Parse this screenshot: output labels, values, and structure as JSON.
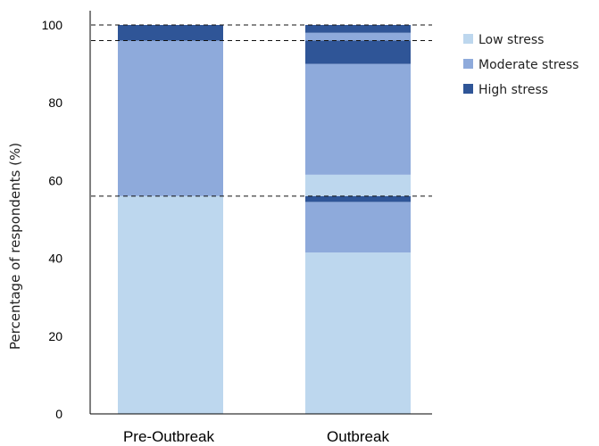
{
  "chart_data": {
    "type": "bar",
    "stacked": true,
    "ylabel": "Percentage of respondents (%)",
    "xlabel": "",
    "ylim": [
      0,
      100
    ],
    "yticks": [
      0,
      20,
      40,
      60,
      80,
      100
    ],
    "categories": [
      "Pre-Outbreak",
      "Outbreak"
    ],
    "colors": {
      "low": "#bdd7ee",
      "moderate": "#8eaadb",
      "high": "#2f5597"
    },
    "legend": {
      "position": "top-right",
      "entries": [
        {
          "key": "low",
          "label": "Low stress"
        },
        {
          "key": "moderate",
          "label": "Moderate stress"
        },
        {
          "key": "high",
          "label": "High stress"
        }
      ]
    },
    "stacks": [
      {
        "category": "Pre-Outbreak",
        "segments": [
          {
            "key": "low",
            "from": 0,
            "to": 56
          },
          {
            "key": "moderate",
            "from": 56,
            "to": 96
          },
          {
            "key": "high",
            "from": 96,
            "to": 100
          }
        ]
      },
      {
        "category": "Outbreak",
        "segments": [
          {
            "key": "low",
            "from": 0,
            "to": 41.5
          },
          {
            "key": "moderate",
            "from": 41.5,
            "to": 54.5
          },
          {
            "key": "high",
            "from": 54.5,
            "to": 56
          },
          {
            "key": "low",
            "from": 56,
            "to": 61.5
          },
          {
            "key": "moderate",
            "from": 61.5,
            "to": 90
          },
          {
            "key": "high",
            "from": 90,
            "to": 96
          },
          {
            "key": "moderate",
            "from": 96,
            "to": 98
          },
          {
            "key": "high",
            "from": 98,
            "to": 100
          }
        ]
      }
    ],
    "reference_lines": [
      {
        "y": 100,
        "style": "dashed"
      },
      {
        "y": 96,
        "style": "dashed"
      },
      {
        "y": 56,
        "style": "dashed"
      }
    ]
  }
}
